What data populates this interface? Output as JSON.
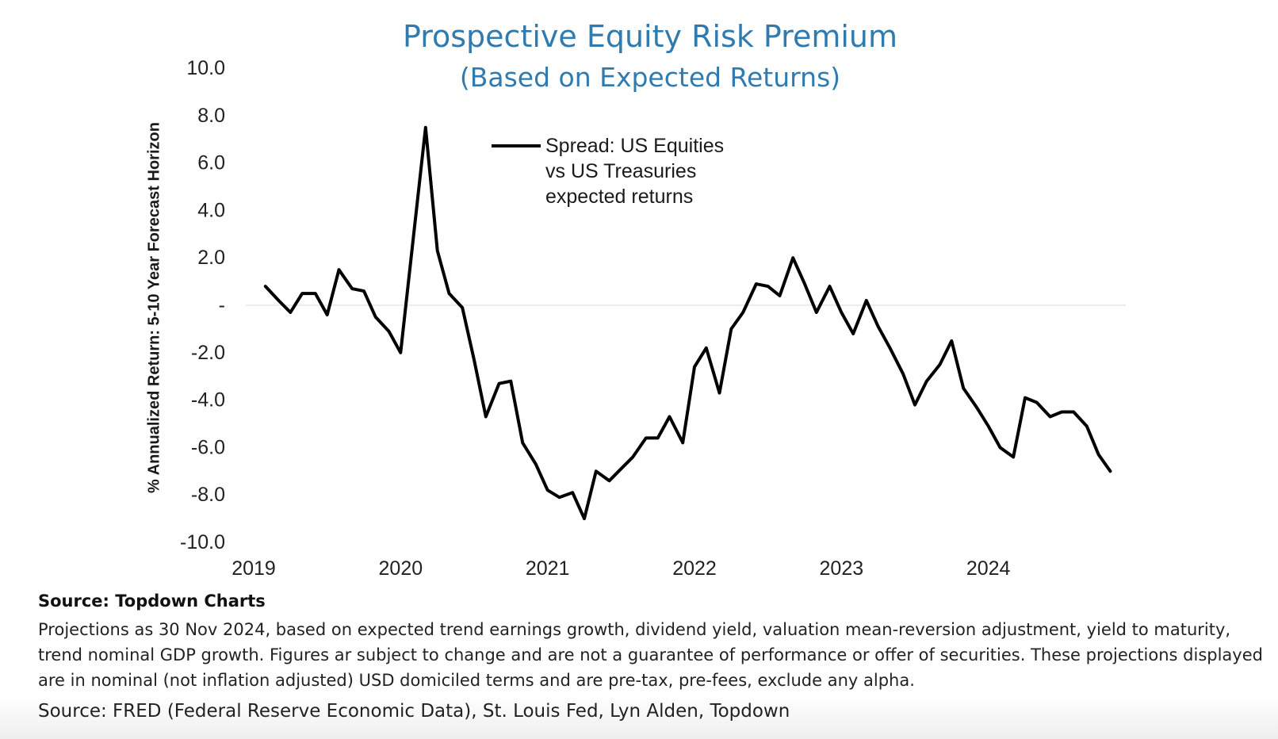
{
  "chart_data": {
    "type": "line",
    "title": "Prospective Equity Risk Premium",
    "subtitle": "(Based on Expected Returns)",
    "ylabel": "% Annualized Return: 5-10 Year Forecast Horizon",
    "xlabel": "",
    "ylim": [
      -10,
      10
    ],
    "y_ticks": [
      10,
      8,
      6,
      4,
      2,
      0,
      -2,
      -4,
      -6,
      -8,
      -10
    ],
    "y_tick_labels": [
      "10.0",
      "8.0",
      "6.0",
      "4.0",
      "2.0",
      "-",
      "-2.0",
      "-4.0",
      "-6.0",
      "-8.0",
      "-10.0"
    ],
    "xlim": [
      2019,
      2025
    ],
    "x_ticks": [
      2019,
      2020,
      2021,
      2022,
      2023,
      2024
    ],
    "x_tick_labels": [
      "2019",
      "2020",
      "2021",
      "2022",
      "2023",
      "2024"
    ],
    "legend": [
      "Spread: US Equities",
      "vs US Treasuries",
      "expected returns"
    ],
    "series": [
      {
        "name": "Spread: US Equities vs US Treasuries expected returns",
        "color": "#000000",
        "x": [
          2019.08,
          2019.17,
          2019.25,
          2019.33,
          2019.42,
          2019.5,
          2019.58,
          2019.67,
          2019.75,
          2019.83,
          2019.92,
          2020.0,
          2020.08,
          2020.17,
          2020.25,
          2020.33,
          2020.42,
          2020.5,
          2020.58,
          2020.67,
          2020.75,
          2020.83,
          2020.92,
          2021.0,
          2021.08,
          2021.17,
          2021.25,
          2021.33,
          2021.42,
          2021.5,
          2021.58,
          2021.67,
          2021.75,
          2021.83,
          2021.92,
          2022.0,
          2022.08,
          2022.17,
          2022.25,
          2022.33,
          2022.42,
          2022.5,
          2022.58,
          2022.67,
          2022.75,
          2022.83,
          2022.92,
          2023.0,
          2023.08,
          2023.17,
          2023.25,
          2023.33,
          2023.42,
          2023.5,
          2023.58,
          2023.67,
          2023.75,
          2023.83,
          2023.92,
          2024.0,
          2024.08,
          2024.17,
          2024.25,
          2024.33,
          2024.42,
          2024.5,
          2024.58,
          2024.67,
          2024.75,
          2024.83
        ],
        "values": [
          0.8,
          0.2,
          -0.3,
          0.5,
          0.5,
          -0.4,
          1.5,
          0.7,
          0.6,
          -0.5,
          -1.1,
          -2.0,
          2.5,
          7.5,
          2.3,
          0.5,
          -0.1,
          -2.3,
          -4.7,
          -3.3,
          -3.2,
          -5.8,
          -6.7,
          -7.8,
          -8.1,
          -7.9,
          -9.0,
          -7.0,
          -7.4,
          -6.9,
          -6.4,
          -5.6,
          -5.6,
          -4.7,
          -5.8,
          -2.6,
          -1.8,
          -3.7,
          -1.0,
          -0.3,
          0.9,
          0.8,
          0.4,
          2.0,
          0.9,
          -0.3,
          0.8,
          -0.3,
          -1.2,
          0.2,
          -0.9,
          -1.8,
          -2.9,
          -4.2,
          -3.2,
          -2.5,
          -1.5,
          -3.5,
          -4.3,
          -5.1,
          -6.0,
          -6.4,
          -3.9,
          -4.1,
          -4.7,
          -4.5,
          -4.5,
          -5.1,
          -6.3,
          -7.0
        ]
      }
    ]
  },
  "source_title": "Source: Topdown Charts",
  "notes": "Projections as 30 Nov 2024, based on expected trend earnings growth, dividend yield, valuation mean-reversion adjustment, yield to maturity, trend nominal GDP growth. Figures ar subject to change and are not a guarantee of performance or offer of securities. These projections displayed are in nominal (not inflation adjusted) USD domiciled terms and are pre-tax, pre-fees, exclude any alpha.",
  "footer_source": "Source: FRED (Federal Reserve Economic Data), St. Louis Fed, Lyn Alden, Topdown"
}
